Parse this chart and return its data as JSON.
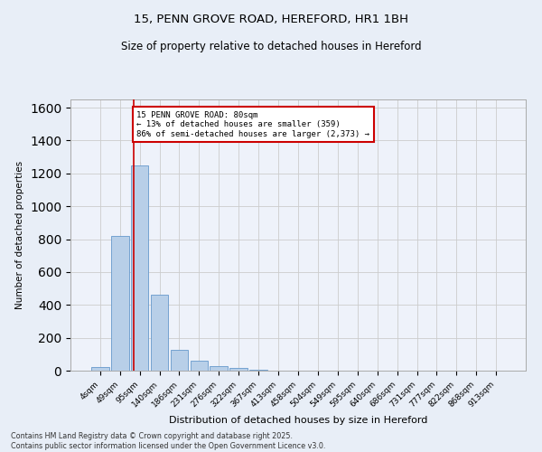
{
  "title_line1": "15, PENN GROVE ROAD, HEREFORD, HR1 1BH",
  "title_line2": "Size of property relative to detached houses in Hereford",
  "xlabel": "Distribution of detached houses by size in Hereford",
  "ylabel": "Number of detached properties",
  "categories": [
    "4sqm",
    "49sqm",
    "95sqm",
    "140sqm",
    "186sqm",
    "231sqm",
    "276sqm",
    "322sqm",
    "367sqm",
    "413sqm",
    "458sqm",
    "504sqm",
    "549sqm",
    "595sqm",
    "640sqm",
    "686sqm",
    "731sqm",
    "777sqm",
    "822sqm",
    "868sqm",
    "913sqm"
  ],
  "values": [
    20,
    820,
    1250,
    460,
    125,
    58,
    28,
    17,
    8,
    0,
    0,
    0,
    0,
    0,
    0,
    0,
    0,
    0,
    0,
    0,
    0
  ],
  "bar_color": "#b8cfe8",
  "bar_edge_color": "#6699cc",
  "annotation_text": "15 PENN GROVE ROAD: 80sqm\n← 13% of detached houses are smaller (359)\n86% of semi-detached houses are larger (2,373) →",
  "annotation_box_color": "white",
  "annotation_box_edge_color": "#cc0000",
  "vline_color": "#cc0000",
  "vline_x": 1.72,
  "ylim": [
    0,
    1650
  ],
  "yticks": [
    0,
    200,
    400,
    600,
    800,
    1000,
    1200,
    1400,
    1600
  ],
  "grid_color": "#cccccc",
  "background_color": "#e8eef7",
  "plot_bg_color": "#eef2fa",
  "footer_line1": "Contains HM Land Registry data © Crown copyright and database right 2025.",
  "footer_line2": "Contains public sector information licensed under the Open Government Licence v3.0."
}
